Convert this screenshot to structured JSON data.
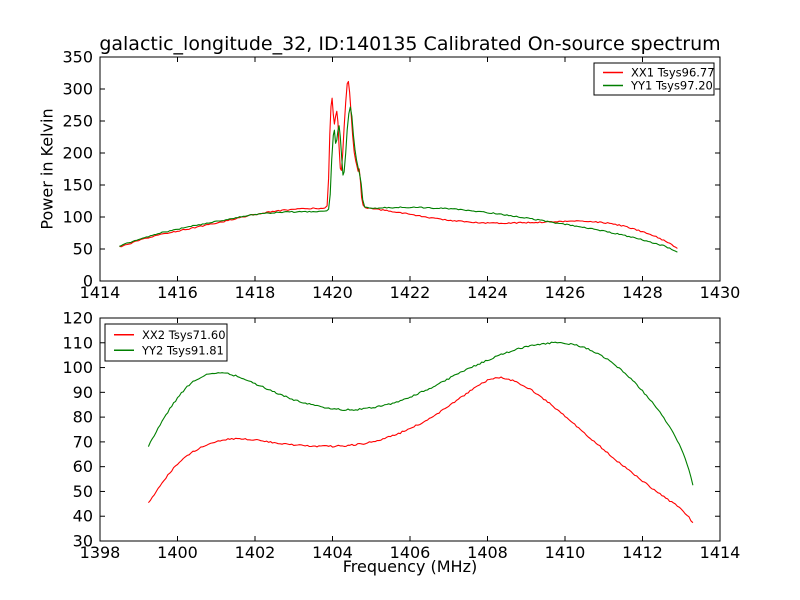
{
  "figure": {
    "title": "galactic_longitude_32, ID:140135 Calibrated On-source spectrum",
    "ylabel": "Power in Kelvin",
    "xlabel": "Frequency (MHz)",
    "background_color": "#ffffff",
    "frame_color": "#000000"
  },
  "chart_data": [
    {
      "id": "top",
      "type": "line",
      "xlim": [
        1414,
        1430
      ],
      "ylim": [
        0,
        350
      ],
      "x_ticks": [
        1414,
        1416,
        1418,
        1420,
        1422,
        1424,
        1426,
        1428,
        1430
      ],
      "y_ticks": [
        0,
        50,
        100,
        150,
        200,
        250,
        300,
        350
      ],
      "grid": false,
      "legend_position": "upper-right",
      "series": [
        {
          "name": "XX1 Tsys96.77",
          "color": "#ff0000",
          "noise_k": 0.9,
          "points": [
            [
              1414.5,
              53
            ],
            [
              1414.8,
              59
            ],
            [
              1415.1,
              65
            ],
            [
              1415.4,
              70
            ],
            [
              1415.7,
              74.5
            ],
            [
              1416.0,
              78
            ],
            [
              1416.4,
              83
            ],
            [
              1416.8,
              88
            ],
            [
              1417.2,
              93
            ],
            [
              1417.6,
              99
            ],
            [
              1418.0,
              104
            ],
            [
              1418.4,
              108
            ],
            [
              1418.8,
              111
            ],
            [
              1419.3,
              113
            ],
            [
              1419.8,
              114
            ],
            [
              1419.86,
              118
            ],
            [
              1419.9,
              160
            ],
            [
              1419.93,
              230
            ],
            [
              1419.96,
              272
            ],
            [
              1419.99,
              285
            ],
            [
              1420.02,
              260
            ],
            [
              1420.05,
              245
            ],
            [
              1420.08,
              258
            ],
            [
              1420.11,
              266
            ],
            [
              1420.14,
              248
            ],
            [
              1420.17,
              210
            ],
            [
              1420.2,
              176
            ],
            [
              1420.23,
              172
            ],
            [
              1420.26,
              196
            ],
            [
              1420.3,
              240
            ],
            [
              1420.34,
              280
            ],
            [
              1420.38,
              308
            ],
            [
              1420.41,
              312
            ],
            [
              1420.44,
              296
            ],
            [
              1420.48,
              262
            ],
            [
              1420.52,
              228
            ],
            [
              1420.56,
              202
            ],
            [
              1420.6,
              188
            ],
            [
              1420.63,
              180
            ],
            [
              1420.66,
              172
            ],
            [
              1420.69,
              175
            ],
            [
              1420.72,
              156
            ],
            [
              1420.75,
              130
            ],
            [
              1420.79,
              118
            ],
            [
              1420.85,
              114
            ],
            [
              1421.0,
              113
            ],
            [
              1421.4,
              110
            ],
            [
              1421.8,
              106.5
            ],
            [
              1422.2,
              102
            ],
            [
              1422.6,
              98
            ],
            [
              1423.0,
              95
            ],
            [
              1423.4,
              92.5
            ],
            [
              1423.9,
              91
            ],
            [
              1424.4,
              90.5
            ],
            [
              1424.9,
              91
            ],
            [
              1425.4,
              92
            ],
            [
              1425.9,
              93
            ],
            [
              1426.3,
              93.5
            ],
            [
              1426.7,
              93
            ],
            [
              1427.1,
              90.5
            ],
            [
              1427.5,
              86
            ],
            [
              1427.9,
              79
            ],
            [
              1428.3,
              70.5
            ],
            [
              1428.6,
              62
            ],
            [
              1428.9,
              51
            ]
          ]
        },
        {
          "name": "YY1 Tsys97.20",
          "color": "#007f00",
          "noise_k": 0.9,
          "points": [
            [
              1414.5,
              55
            ],
            [
              1414.8,
              61
            ],
            [
              1415.1,
              67
            ],
            [
              1415.4,
              72.5
            ],
            [
              1415.7,
              77
            ],
            [
              1416.0,
              81
            ],
            [
              1416.4,
              86
            ],
            [
              1416.8,
              90.5
            ],
            [
              1417.2,
              95
            ],
            [
              1417.6,
              100
            ],
            [
              1418.0,
              104
            ],
            [
              1418.4,
              106.5
            ],
            [
              1418.9,
              108
            ],
            [
              1419.4,
              108.5
            ],
            [
              1419.8,
              109
            ],
            [
              1419.9,
              112
            ],
            [
              1419.94,
              135
            ],
            [
              1419.98,
              190
            ],
            [
              1420.02,
              228
            ],
            [
              1420.05,
              235
            ],
            [
              1420.08,
              216
            ],
            [
              1420.11,
              220
            ],
            [
              1420.14,
              235
            ],
            [
              1420.17,
              242
            ],
            [
              1420.2,
              225
            ],
            [
              1420.24,
              190
            ],
            [
              1420.27,
              165
            ],
            [
              1420.3,
              170
            ],
            [
              1420.34,
              200
            ],
            [
              1420.38,
              236
            ],
            [
              1420.42,
              262
            ],
            [
              1420.46,
              272
            ],
            [
              1420.5,
              258
            ],
            [
              1420.54,
              228
            ],
            [
              1420.58,
              205
            ],
            [
              1420.62,
              190
            ],
            [
              1420.66,
              178
            ],
            [
              1420.7,
              168
            ],
            [
              1420.74,
              152
            ],
            [
              1420.78,
              128
            ],
            [
              1420.83,
              115
            ],
            [
              1421.0,
              113.5
            ],
            [
              1421.4,
              114.5
            ],
            [
              1421.8,
              115
            ],
            [
              1422.2,
              115
            ],
            [
              1422.6,
              114
            ],
            [
              1423.0,
              113
            ],
            [
              1423.4,
              111
            ],
            [
              1423.8,
              108.5
            ],
            [
              1424.2,
              105.5
            ],
            [
              1424.6,
              102
            ],
            [
              1425.0,
              98.5
            ],
            [
              1425.4,
              94.5
            ],
            [
              1425.8,
              90.5
            ],
            [
              1426.2,
              86.5
            ],
            [
              1426.6,
              82.5
            ],
            [
              1427.0,
              78
            ],
            [
              1427.4,
              73
            ],
            [
              1427.8,
              67.5
            ],
            [
              1428.2,
              61
            ],
            [
              1428.6,
              54
            ],
            [
              1428.9,
              45
            ]
          ]
        }
      ]
    },
    {
      "id": "bottom",
      "type": "line",
      "xlim": [
        1398,
        1414
      ],
      "ylim": [
        30,
        120
      ],
      "x_ticks": [
        1398,
        1400,
        1402,
        1404,
        1406,
        1408,
        1410,
        1412,
        1414
      ],
      "y_ticks": [
        30,
        40,
        50,
        60,
        70,
        80,
        90,
        100,
        110,
        120
      ],
      "grid": false,
      "legend_position": "upper-left",
      "series": [
        {
          "name": "XX2 Tsys71.60",
          "color": "#ff0000",
          "noise_k": 0.32,
          "points": [
            [
              1399.25,
              45.3
            ],
            [
              1399.45,
              50
            ],
            [
              1399.65,
              54.5
            ],
            [
              1399.85,
              58.5
            ],
            [
              1400.05,
              62
            ],
            [
              1400.3,
              65
            ],
            [
              1400.55,
              67.3
            ],
            [
              1400.8,
              69.2
            ],
            [
              1401.05,
              70.4
            ],
            [
              1401.35,
              71.1
            ],
            [
              1401.65,
              71.3
            ],
            [
              1401.95,
              70.9
            ],
            [
              1402.25,
              70.2
            ],
            [
              1402.55,
              69.5
            ],
            [
              1402.85,
              69
            ],
            [
              1403.2,
              68.6
            ],
            [
              1403.6,
              68.3
            ],
            [
              1404.0,
              68.2
            ],
            [
              1404.4,
              68.5
            ],
            [
              1404.8,
              69.3
            ],
            [
              1405.2,
              70.7
            ],
            [
              1405.6,
              72.7
            ],
            [
              1406.0,
              75.3
            ],
            [
              1406.4,
              78.5
            ],
            [
              1406.8,
              82.3
            ],
            [
              1407.2,
              86.6
            ],
            [
              1407.5,
              90
            ],
            [
              1407.8,
              93
            ],
            [
              1408.0,
              94.8
            ],
            [
              1408.2,
              95.8
            ],
            [
              1408.35,
              96
            ],
            [
              1408.55,
              95.3
            ],
            [
              1408.8,
              93.8
            ],
            [
              1409.1,
              91.3
            ],
            [
              1409.4,
              88
            ],
            [
              1409.7,
              84.3
            ],
            [
              1410.0,
              80.3
            ],
            [
              1410.3,
              76.3
            ],
            [
              1410.6,
              72.3
            ],
            [
              1410.9,
              68.2
            ],
            [
              1411.2,
              64.2
            ],
            [
              1411.5,
              60.3
            ],
            [
              1411.8,
              56.6
            ],
            [
              1412.1,
              53
            ],
            [
              1412.4,
              49.6
            ],
            [
              1412.7,
              46.3
            ],
            [
              1413.0,
              43
            ],
            [
              1413.1,
              41.3
            ],
            [
              1413.2,
              39.5
            ],
            [
              1413.3,
              37.4
            ]
          ]
        },
        {
          "name": "YY2 Tsys91.81",
          "color": "#007f00",
          "noise_k": 0.32,
          "points": [
            [
              1399.25,
              68.3
            ],
            [
              1399.45,
              74
            ],
            [
              1399.65,
              79.5
            ],
            [
              1399.85,
              84.5
            ],
            [
              1400.05,
              88.8
            ],
            [
              1400.25,
              92.3
            ],
            [
              1400.45,
              94.8
            ],
            [
              1400.65,
              96.5
            ],
            [
              1400.85,
              97.6
            ],
            [
              1401.05,
              98
            ],
            [
              1401.25,
              97.7
            ],
            [
              1401.5,
              96.7
            ],
            [
              1401.75,
              95.2
            ],
            [
              1402.0,
              93.5
            ],
            [
              1402.25,
              91.8
            ],
            [
              1402.5,
              90.1
            ],
            [
              1402.75,
              88.5
            ],
            [
              1403.0,
              87
            ],
            [
              1403.25,
              85.8
            ],
            [
              1403.5,
              84.8
            ],
            [
              1403.75,
              84
            ],
            [
              1404.0,
              83.4
            ],
            [
              1404.3,
              83
            ],
            [
              1404.6,
              83
            ],
            [
              1404.9,
              83.5
            ],
            [
              1405.2,
              84.3
            ],
            [
              1405.5,
              85.4
            ],
            [
              1405.8,
              86.9
            ],
            [
              1406.1,
              88.7
            ],
            [
              1406.4,
              90.8
            ],
            [
              1406.7,
              93.1
            ],
            [
              1407.0,
              95.5
            ],
            [
              1407.3,
              97.9
            ],
            [
              1407.6,
              100.2
            ],
            [
              1407.9,
              102.3
            ],
            [
              1408.2,
              104.3
            ],
            [
              1408.5,
              106.1
            ],
            [
              1408.8,
              107.6
            ],
            [
              1409.1,
              108.8
            ],
            [
              1409.4,
              109.6
            ],
            [
              1409.7,
              110
            ],
            [
              1410.0,
              109.8
            ],
            [
              1410.3,
              109
            ],
            [
              1410.6,
              107.5
            ],
            [
              1410.9,
              105.2
            ],
            [
              1411.2,
              102.2
            ],
            [
              1411.5,
              98.5
            ],
            [
              1411.8,
              94
            ],
            [
              1412.1,
              88.8
            ],
            [
              1412.4,
              83
            ],
            [
              1412.6,
              78.5
            ],
            [
              1412.8,
              73.5
            ],
            [
              1413.0,
              67.5
            ],
            [
              1413.1,
              63.5
            ],
            [
              1413.2,
              58.5
            ],
            [
              1413.3,
              52.5
            ]
          ]
        }
      ]
    }
  ]
}
